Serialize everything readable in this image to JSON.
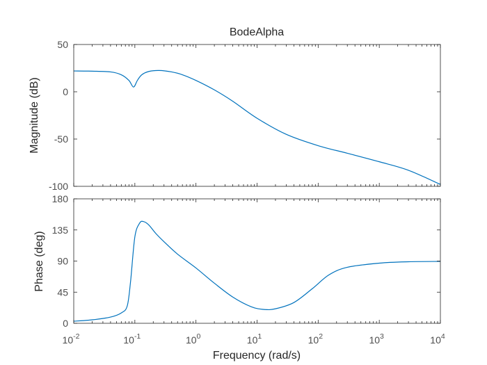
{
  "chart_data": {
    "type": "line",
    "title": "BodeAlpha",
    "xlabel": "Frequency  (rad/s)",
    "x_scale": "log",
    "x_ticks": [
      0.01,
      0.1,
      1,
      10,
      100,
      1000,
      10000
    ],
    "x_tick_labels": [
      {
        "base": "10",
        "exp": "-2"
      },
      {
        "base": "10",
        "exp": "-1"
      },
      {
        "base": "10",
        "exp": "0"
      },
      {
        "base": "10",
        "exp": "1"
      },
      {
        "base": "10",
        "exp": "2"
      },
      {
        "base": "10",
        "exp": "3"
      },
      {
        "base": "10",
        "exp": "4"
      }
    ],
    "xlim": [
      0.01,
      10000
    ],
    "line_color": "#0072bd",
    "grid": false,
    "panels": [
      {
        "name": "magnitude",
        "ylabel": "Magnitude (dB)",
        "ylim": [
          -100,
          50
        ],
        "y_ticks": [
          -100,
          -50,
          0,
          50
        ],
        "y_tick_labels": [
          "-100",
          "-50",
          "0",
          "50"
        ],
        "series": [
          {
            "x": [
              0.01,
              0.02,
              0.04,
              0.06,
              0.08,
              0.095,
              0.11,
              0.13,
              0.17,
              0.25,
              0.4,
              0.6,
              1,
              2,
              4,
              10,
              30,
              100,
              300,
              1000,
              3000,
              10000
            ],
            "y": [
              22,
              21.8,
              21,
              18,
              12,
              5,
              12,
              18,
              21.5,
              22.5,
              21,
              18,
              12,
              2,
              -10,
              -28,
              -45,
              -57,
              -65,
              -74,
              -83,
              -98
            ]
          }
        ]
      },
      {
        "name": "phase",
        "ylabel": "Phase (deg)",
        "ylim": [
          0,
          180
        ],
        "y_ticks": [
          0,
          45,
          90,
          135,
          180
        ],
        "y_tick_labels": [
          "0",
          "45",
          "90",
          "135",
          "180"
        ],
        "series": [
          {
            "x": [
              0.01,
              0.02,
              0.04,
              0.06,
              0.075,
              0.085,
              0.1,
              0.12,
              0.14,
              0.17,
              0.22,
              0.3,
              0.5,
              1,
              2,
              4,
              8,
              13,
              20,
              40,
              80,
              150,
              300,
              1000,
              3000,
              10000
            ],
            "y": [
              3,
              5,
              9,
              15,
              25,
              60,
              125,
              145,
              147,
              142,
              130,
              118,
              100,
              80,
              58,
              38,
              24,
              20,
              21,
              30,
              50,
              70,
              81,
              87,
              89,
              89.5
            ]
          }
        ]
      }
    ]
  }
}
